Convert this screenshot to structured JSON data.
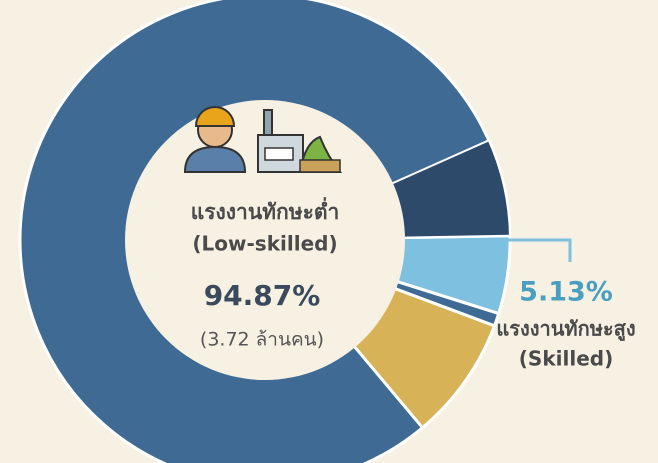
{
  "chart_data": {
    "type": "donut",
    "categories": [
      "แรงงานทักษะต่ำ",
      "แรงงานทักษะสูง"
    ],
    "category_subtitles": [
      "(Low-skilled)",
      "(Skilled)"
    ],
    "values": [
      94.87,
      5.13
    ],
    "value_labels": [
      "94.87%",
      "5.13%"
    ],
    "colors": [
      "#3f6a93",
      "#7ec0e0"
    ],
    "annotation": "(3.72 ล้านคน)"
  }
}
